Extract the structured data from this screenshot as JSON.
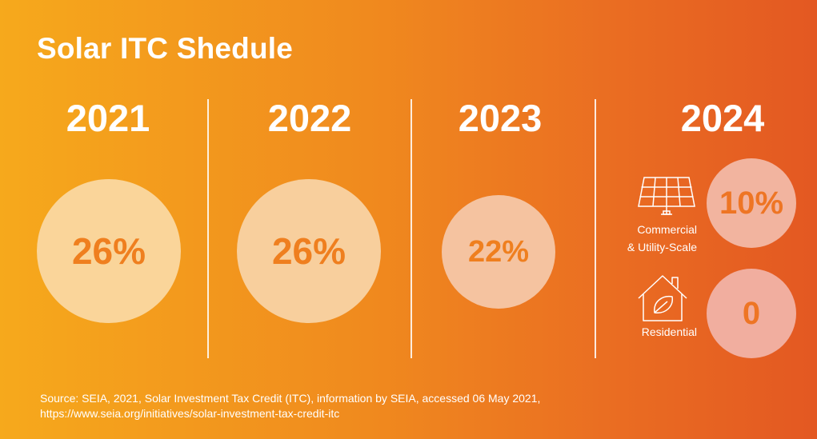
{
  "title": "Solar ITC Shedule",
  "columns": [
    {
      "year": "2021",
      "value": "26%"
    },
    {
      "year": "2022",
      "value": "26%"
    },
    {
      "year": "2023",
      "value": "22%"
    },
    {
      "year": "2024"
    }
  ],
  "breakdown_2024": {
    "commercial": {
      "label_line1": "Commercial",
      "label_line2": "& Utility-Scale",
      "value": "10%",
      "icon": "solar-panel-icon"
    },
    "residential": {
      "label": "Residential",
      "value": "0",
      "icon": "house-leaf-icon"
    }
  },
  "source": {
    "line1": "Source: SEIA, 2021, Solar Investment Tax Credit (ITC), information by SEIA, accessed 06 May 2021,",
    "line2": "https://www.seia.org/initiatives/solar-investment-tax-credit-itc"
  },
  "colors": {
    "gradient_start": "#f6a91c",
    "gradient_end": "#e35822",
    "value_text": "#ef7f1f"
  }
}
